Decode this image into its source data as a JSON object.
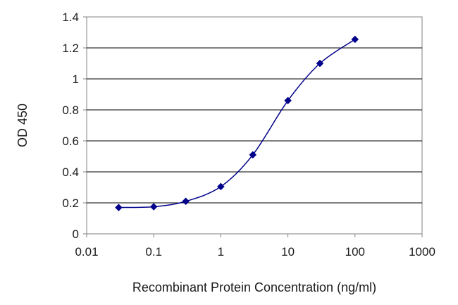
{
  "chart_data": {
    "type": "line",
    "title": "",
    "xlabel": "Recombinant Protein Concentration (ng/ml)",
    "ylabel": "OD 450",
    "x_scale": "log",
    "xlim": [
      0.01,
      1000
    ],
    "ylim": [
      0,
      1.4
    ],
    "x_ticks": [
      0.01,
      0.1,
      1,
      10,
      100,
      1000
    ],
    "x_tick_labels": [
      "0.01",
      "0.1",
      "1",
      "10",
      "100",
      "1000"
    ],
    "y_ticks": [
      0,
      0.2,
      0.4,
      0.6,
      0.8,
      1,
      1.2,
      1.4
    ],
    "y_tick_labels": [
      "0",
      "0.2",
      "0.4",
      "0.6",
      "0.8",
      "1",
      "1.2",
      "1.4"
    ],
    "grid": "horizontal",
    "legend": "none",
    "series": [
      {
        "x": [
          0.03,
          0.1,
          0.3,
          1,
          3,
          10,
          30,
          100
        ],
        "y": [
          0.17,
          0.175,
          0.21,
          0.305,
          0.51,
          0.86,
          1.1,
          1.255
        ],
        "color": "#00008b",
        "marker": "diamond"
      }
    ]
  }
}
